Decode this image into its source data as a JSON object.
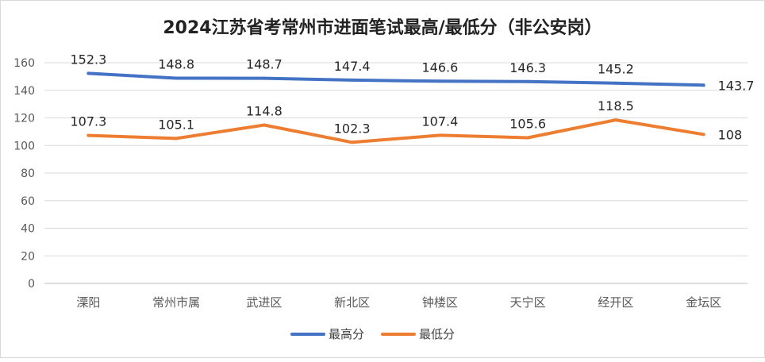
{
  "chart_data": {
    "type": "line",
    "title": "2024江苏省考常州市进面笔试最高/最低分（非公安岗）",
    "xlabel": "",
    "ylabel": "",
    "categories": [
      "溧阳",
      "常州市属",
      "武进区",
      "新北区",
      "钟楼区",
      "天宁区",
      "经开区",
      "金坛区"
    ],
    "series": [
      {
        "name": "最高分",
        "values": [
          152.3,
          148.8,
          148.7,
          147.4,
          146.6,
          146.3,
          145.2,
          143.7
        ],
        "labels": [
          "152.3",
          "148.8",
          "148.7",
          "147.4",
          "146.6",
          "146.3",
          "145.2",
          "143.7"
        ],
        "color": "#4472C4"
      },
      {
        "name": "最低分",
        "values": [
          107.3,
          105.1,
          114.8,
          102.3,
          107.4,
          105.6,
          118.5,
          108
        ],
        "labels": [
          "107.3",
          "105.1",
          "114.8",
          "102.3",
          "107.4",
          "105.6",
          "118.5",
          "108"
        ],
        "color": "#ED7D31"
      }
    ],
    "ylim": [
      0,
      160
    ],
    "yticks": [
      "0",
      "20",
      "40",
      "60",
      "80",
      "100",
      "120",
      "140",
      "160"
    ],
    "grid": true,
    "legend": "bottom"
  }
}
